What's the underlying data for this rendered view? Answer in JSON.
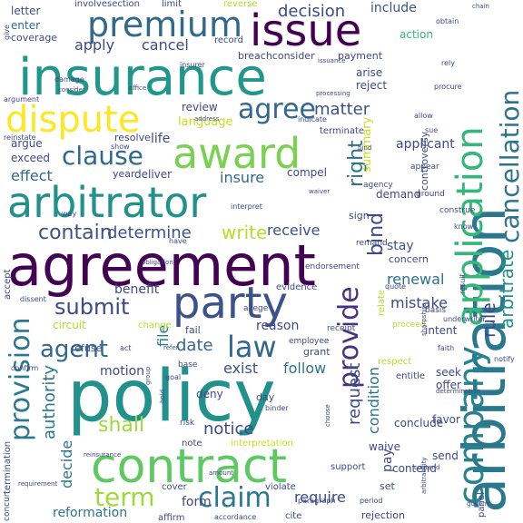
{
  "words": [
    {
      "text": "agreement",
      "color": "#440154"
    },
    {
      "text": "policy",
      "color": "#21918c"
    },
    {
      "text": "insurance",
      "color": "#1f988b"
    },
    {
      "text": "arbitration",
      "color": "#2a788e"
    },
    {
      "text": "contract",
      "color": "#5ec962"
    },
    {
      "text": "arbitrator",
      "color": "#21918c"
    },
    {
      "text": "party",
      "color": "#3b528b"
    },
    {
      "text": "award",
      "color": "#7ad151"
    },
    {
      "text": "issue",
      "color": "#440154"
    },
    {
      "text": "premium",
      "color": "#31688e"
    },
    {
      "text": "dispute",
      "color": "#fde725"
    },
    {
      "text": "application",
      "color": "#35b779"
    },
    {
      "text": "company",
      "color": "#26828e"
    },
    {
      "text": "cancellation",
      "color": "#2c728e"
    },
    {
      "text": "provision",
      "color": "#2a788e"
    },
    {
      "text": "agent",
      "color": "#31688e"
    },
    {
      "text": "law",
      "color": "#31688e"
    },
    {
      "text": "claim",
      "color": "#2a788e"
    },
    {
      "text": "clause",
      "color": "#31688e"
    },
    {
      "text": "agree",
      "color": "#31688e"
    },
    {
      "text": "provide",
      "color": "#46327e"
    },
    {
      "text": "arbitrate",
      "color": "#21918c"
    },
    {
      "text": "rule",
      "color": "#3e4989"
    },
    {
      "text": "bind",
      "color": "#3e4989"
    },
    {
      "text": "contain",
      "color": "#3b528b"
    },
    {
      "text": "determine",
      "color": "#3b528b"
    },
    {
      "text": "shall",
      "color": "#a0da39"
    },
    {
      "text": "term",
      "color": "#a0da39"
    },
    {
      "text": "submit",
      "color": "#3e4989"
    },
    {
      "text": "write",
      "color": "#b5de2b"
    },
    {
      "text": "receive",
      "color": "#3b528b"
    },
    {
      "text": "notice",
      "color": "#3e4989"
    },
    {
      "text": "decision",
      "color": "#3e4989"
    },
    {
      "text": "matter",
      "color": "#3b528b"
    },
    {
      "text": "apply",
      "color": "#3e4989"
    },
    {
      "text": "cancel",
      "color": "#3e4989"
    },
    {
      "text": "right",
      "color": "#2c728e"
    },
    {
      "text": "require",
      "color": "#3e4989"
    },
    {
      "text": "date",
      "color": "#31688e"
    },
    {
      "text": "insure",
      "color": "#31688e"
    },
    {
      "text": "language",
      "color": "#cde11d"
    },
    {
      "text": "effect",
      "color": "#31688e"
    },
    {
      "text": "exist",
      "color": "#3b528b"
    },
    {
      "text": "follow",
      "color": "#2c728e"
    },
    {
      "text": "benefit",
      "color": "#3e4989"
    },
    {
      "text": "authority",
      "color": "#2a788e"
    },
    {
      "text": "renewal",
      "color": "#2c728e"
    },
    {
      "text": "mistake",
      "color": "#3e4989"
    },
    {
      "text": "stay",
      "color": "#3b528b"
    },
    {
      "text": "condition",
      "color": "#2c728e"
    },
    {
      "text": "request",
      "color": "#3e4989"
    },
    {
      "text": "include",
      "color": "#3b528b"
    },
    {
      "text": "form",
      "color": "#3e4989"
    },
    {
      "text": "reason",
      "color": "#3e4989"
    },
    {
      "text": "reformation",
      "color": "#2a788e"
    },
    {
      "text": "motion",
      "color": "#3e4989"
    },
    {
      "text": "decide",
      "color": "#2a788e"
    },
    {
      "text": "file",
      "color": "#2a788e"
    },
    {
      "text": "summary",
      "color": "#c8e020"
    },
    {
      "text": "applicant",
      "color": "#3e4989"
    },
    {
      "text": "argue",
      "color": "#3e4989"
    },
    {
      "text": "life",
      "color": "#3e4989"
    },
    {
      "text": "review",
      "color": "#3e4989"
    },
    {
      "text": "enter",
      "color": "#31688e"
    },
    {
      "text": "vacate",
      "color": "#31688e"
    },
    {
      "text": "deny",
      "color": "#3e4989"
    },
    {
      "text": "send",
      "color": "#3e4989"
    },
    {
      "text": "favor",
      "color": "#3e4989"
    },
    {
      "text": "compel",
      "color": "#3e4989"
    },
    {
      "text": "circuit",
      "color": "#b5de2b"
    },
    {
      "text": "pay",
      "color": "#3e4989"
    },
    {
      "text": "interpretation",
      "color": "#c8e020"
    },
    {
      "text": "cover",
      "color": "#3e4989"
    },
    {
      "text": "conclude",
      "color": "#3e4989"
    },
    {
      "text": "contend",
      "color": "#3e4989"
    },
    {
      "text": "deliver",
      "color": "#3e4989"
    },
    {
      "text": "letter",
      "color": "#3e4989"
    },
    {
      "text": "exceed",
      "color": "#3e4989"
    },
    {
      "text": "resolve",
      "color": "#3e4989"
    },
    {
      "text": "year",
      "color": "#3e4989"
    },
    {
      "text": "involvesection",
      "color": "#3e4989"
    },
    {
      "text": "limit",
      "color": "#3e4989"
    },
    {
      "text": "reverse",
      "color": "#b5de2b"
    },
    {
      "text": "coverage",
      "color": "#3e4989"
    },
    {
      "text": "record",
      "color": "#3e4989"
    },
    {
      "text": "breachconsider",
      "color": "#3e4989"
    },
    {
      "text": "payment",
      "color": "#3e4989"
    },
    {
      "text": "action",
      "color": "#35b779"
    },
    {
      "text": "arise",
      "color": "#3e4989"
    },
    {
      "text": "reject",
      "color": "#3e4989"
    },
    {
      "text": "terminate",
      "color": "#3e4989"
    },
    {
      "text": "controversy",
      "color": "#3e4989"
    },
    {
      "text": "demand",
      "color": "#3e4989"
    },
    {
      "text": "sign",
      "color": "#3e4989"
    },
    {
      "text": "concern",
      "color": "#3e4989"
    },
    {
      "text": "intent",
      "color": "#3e4989"
    },
    {
      "text": "seek",
      "color": "#3e4989"
    },
    {
      "text": "offer",
      "color": "#3e4989"
    },
    {
      "text": "waive",
      "color": "#3e4989"
    },
    {
      "text": "evidence",
      "color": "#3e4989"
    },
    {
      "text": "relate",
      "color": "#b5de2b"
    },
    {
      "text": "grant",
      "color": "#3e4989"
    },
    {
      "text": "change",
      "color": "#b5de2b"
    },
    {
      "text": "fail",
      "color": "#3e4989"
    },
    {
      "text": "refuse",
      "color": "#3e4989"
    },
    {
      "text": "day",
      "color": "#3e4989"
    },
    {
      "text": "note",
      "color": "#3e4989"
    },
    {
      "text": "support",
      "color": "#3e4989"
    },
    {
      "text": "violate",
      "color": "#3e4989"
    },
    {
      "text": "set",
      "color": "#3e4989"
    },
    {
      "text": "rejection",
      "color": "#3e4989"
    },
    {
      "text": "cite",
      "color": "#3e4989"
    },
    {
      "text": "affirm",
      "color": "#3e4989"
    },
    {
      "text": "accept",
      "color": "#3e4989"
    },
    {
      "text": "termination",
      "color": "#3e4989"
    },
    {
      "text": "concur",
      "color": "#3e4989"
    },
    {
      "text": "panel",
      "color": "#3e4989"
    },
    {
      "text": "entitle",
      "color": "#3e4989"
    },
    {
      "text": "proceed",
      "color": "#b5de2b"
    },
    {
      "text": "employee",
      "color": "#3e4989"
    },
    {
      "text": "receipt",
      "color": "#3e4989"
    },
    {
      "text": "base",
      "color": "#3e4989"
    },
    {
      "text": "endorsement",
      "color": "#3e4989"
    },
    {
      "text": "remand",
      "color": "#3e4989"
    },
    {
      "text": "allege",
      "color": "#3e4989"
    },
    {
      "text": "appear",
      "color": "#3e4989"
    },
    {
      "text": "agency",
      "color": "#3e4989"
    },
    {
      "text": "ground",
      "color": "#3e4989"
    },
    {
      "text": "construe",
      "color": "#3e4989"
    },
    {
      "text": "know",
      "color": "#3e4989"
    },
    {
      "text": "basis",
      "color": "#3e4989"
    },
    {
      "text": "faith",
      "color": "#3e4989"
    },
    {
      "text": "notify",
      "color": "#3e4989"
    },
    {
      "text": "underwriter",
      "color": "#3e4989"
    },
    {
      "text": "result",
      "color": "#3e4989"
    },
    {
      "text": "respect",
      "color": "#b5de2b"
    },
    {
      "text": "dissent",
      "color": "#3e4989"
    },
    {
      "text": "confirm",
      "color": "#3e4989"
    },
    {
      "text": "risk",
      "color": "#3e4989"
    },
    {
      "text": "insurer",
      "color": "#3e4989"
    },
    {
      "text": "damage",
      "color": "#3e4989"
    },
    {
      "text": "argument",
      "color": "#3e4989"
    },
    {
      "text": "reinstate",
      "color": "#3e4989"
    },
    {
      "text": "show",
      "color": "#3e4989"
    },
    {
      "text": "address",
      "color": "#3e4989"
    },
    {
      "text": "indicate",
      "color": "#3e4989"
    },
    {
      "text": "allow",
      "color": "#3e4989"
    },
    {
      "text": "procure",
      "color": "#3e4989"
    },
    {
      "text": "rely",
      "color": "#3e4989"
    },
    {
      "text": "obtain",
      "color": "#3e4989"
    },
    {
      "text": "paragraph",
      "color": "#3e4989"
    },
    {
      "text": "period",
      "color": "#3e4989"
    },
    {
      "text": "accordance",
      "color": "#3e4989"
    },
    {
      "text": "have",
      "color": "#3e4989"
    },
    {
      "text": "quote",
      "color": "#3e4989"
    },
    {
      "text": "interpret",
      "color": "#3e4989"
    },
    {
      "text": "arbitrability",
      "color": "#3e4989"
    },
    {
      "text": "goal",
      "color": "#3e4989"
    },
    {
      "text": "binder",
      "color": "#3e4989"
    },
    {
      "text": "give",
      "color": "#3e4989"
    },
    {
      "text": "sue",
      "color": "#3e4989"
    },
    {
      "text": "way",
      "color": "#3e4989"
    },
    {
      "text": "act",
      "color": "#3e4989"
    },
    {
      "text": "requirement",
      "color": "#3e4989"
    },
    {
      "text": "refer",
      "color": "#3e4989"
    },
    {
      "text": "reinsurance",
      "color": "#3e4989"
    },
    {
      "text": "sharpshire",
      "color": "#3e4989"
    },
    {
      "text": "waiver",
      "color": "#3e4989"
    },
    {
      "text": "determination",
      "color": "#3e4989"
    },
    {
      "text": "choose",
      "color": "#3e4989"
    },
    {
      "text": "obligation",
      "color": "#3e4989"
    },
    {
      "text": "hold",
      "color": "#3e4989"
    },
    {
      "text": "consider",
      "color": "#3e4989"
    },
    {
      "text": "processing",
      "color": "#3e4989"
    },
    {
      "text": "chain",
      "color": "#3e4989"
    },
    {
      "text": "govern",
      "color": "#3e4989"
    },
    {
      "text": "amount",
      "color": "#3e4989"
    },
    {
      "text": "group",
      "color": "#3e4989"
    },
    {
      "text": "office",
      "color": "#3e4989"
    },
    {
      "text": "issuance",
      "color": "#3e4989"
    },
    {
      "text": "contend",
      "color": "#3e4989"
    },
    {
      "text": "bind",
      "color": "#3e4989"
    }
  ]
}
